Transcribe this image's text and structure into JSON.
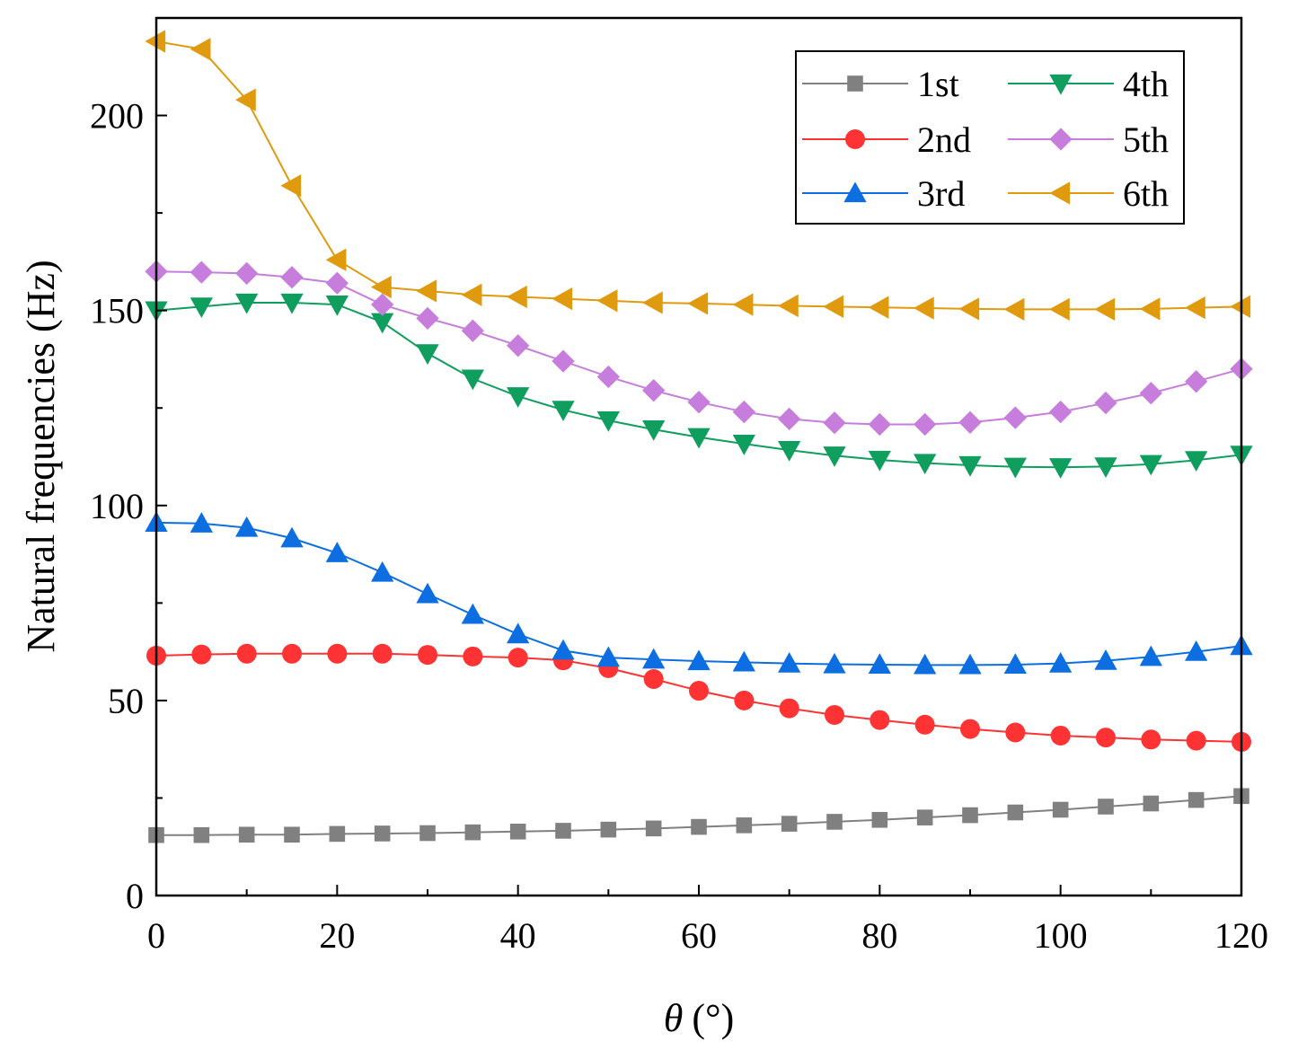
{
  "chart_data": {
    "type": "line",
    "title": "",
    "xlabel_symbol": "θ",
    "xlabel_unit": "(°)",
    "ylabel": "Natural frequencies (Hz)",
    "xlim": [
      0,
      120
    ],
    "ylim": [
      0,
      225
    ],
    "xticks": [
      0,
      20,
      40,
      60,
      80,
      100,
      120
    ],
    "yticks": [
      0,
      50,
      100,
      150,
      200
    ],
    "x": [
      0,
      5,
      10,
      15,
      20,
      25,
      30,
      35,
      40,
      45,
      50,
      55,
      60,
      65,
      70,
      75,
      80,
      85,
      90,
      95,
      100,
      105,
      110,
      115,
      120
    ],
    "legend_position": "top-right",
    "series": [
      {
        "name": "1st",
        "color": "#808080",
        "marker": "square",
        "values": [
          15.5,
          15.5,
          15.6,
          15.6,
          15.8,
          15.9,
          16.0,
          16.2,
          16.4,
          16.6,
          16.9,
          17.2,
          17.6,
          18.0,
          18.4,
          18.9,
          19.4,
          20.0,
          20.6,
          21.3,
          22.0,
          22.8,
          23.6,
          24.5,
          25.5
        ]
      },
      {
        "name": "2nd",
        "color": "#ff3333",
        "marker": "circle",
        "values": [
          61.5,
          61.8,
          62.0,
          62.0,
          62.0,
          62.0,
          61.7,
          61.3,
          61.0,
          60.3,
          58.3,
          55.5,
          52.5,
          50.0,
          48.0,
          46.3,
          45.0,
          43.8,
          42.7,
          41.8,
          41.0,
          40.5,
          40.0,
          39.7,
          39.4
        ]
      },
      {
        "name": "3rd",
        "color": "#0c6ee0",
        "marker": "triangle-up",
        "values": [
          95.6,
          95.4,
          94.3,
          91.6,
          87.8,
          82.8,
          77.3,
          72.0,
          67.0,
          62.8,
          61.0,
          60.5,
          60.1,
          59.8,
          59.5,
          59.3,
          59.2,
          59.1,
          59.1,
          59.2,
          59.5,
          60.2,
          61.2,
          62.5,
          64.0
        ]
      },
      {
        "name": "4th",
        "color": "#0f9e5e",
        "marker": "triangle-down",
        "values": [
          150.0,
          151.0,
          152.0,
          152.0,
          151.5,
          147.0,
          139.0,
          132.5,
          128.0,
          124.5,
          121.8,
          119.5,
          117.5,
          115.8,
          114.2,
          112.8,
          111.7,
          110.9,
          110.3,
          109.9,
          109.8,
          110.0,
          110.6,
          111.6,
          113.0
        ]
      },
      {
        "name": "5th",
        "color": "#c77ddb",
        "marker": "diamond",
        "values": [
          160.0,
          159.8,
          159.5,
          158.5,
          157.0,
          151.5,
          148.0,
          144.8,
          141.0,
          137.0,
          133.0,
          129.5,
          126.5,
          124.0,
          122.2,
          121.2,
          120.8,
          120.8,
          121.3,
          122.5,
          124.0,
          126.3,
          128.8,
          131.8,
          135.0
        ]
      },
      {
        "name": "6th",
        "color": "#e09a0d",
        "marker": "triangle-left",
        "values": [
          219.0,
          217.0,
          204.0,
          182.0,
          163.0,
          156.0,
          155.0,
          154.0,
          153.5,
          153.0,
          152.5,
          152.0,
          151.8,
          151.5,
          151.2,
          151.0,
          150.8,
          150.6,
          150.4,
          150.3,
          150.3,
          150.3,
          150.4,
          150.7,
          151.0
        ]
      }
    ]
  }
}
